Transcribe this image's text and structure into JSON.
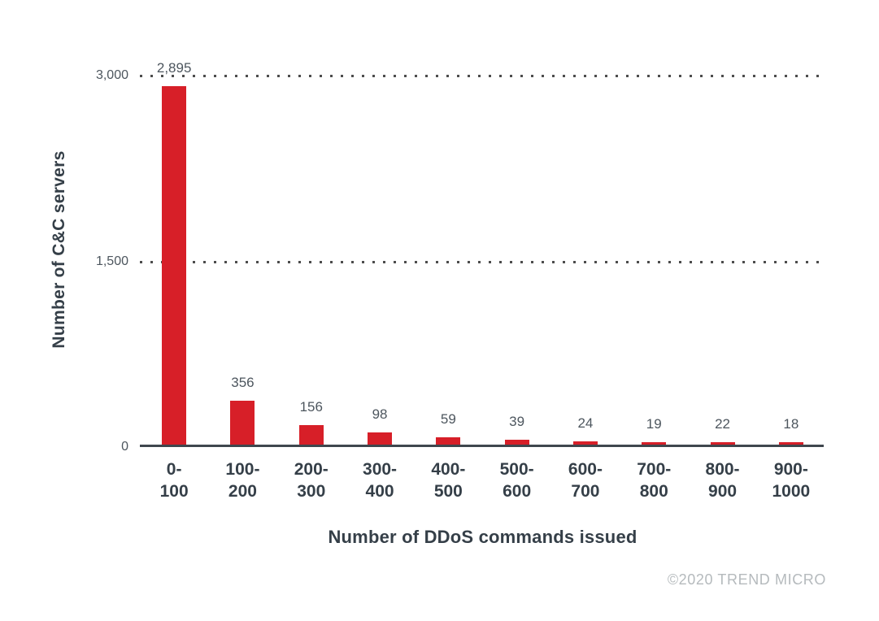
{
  "chart_data": {
    "type": "bar",
    "title": "",
    "xlabel": "Number of DDoS commands issued",
    "ylabel": "Number of C&C servers",
    "categories": [
      "0-100",
      "100-200",
      "200-300",
      "300-400",
      "400-500",
      "500-600",
      "600-700",
      "700-800",
      "800-900",
      "900-1000"
    ],
    "category_labels": [
      "0-\n100",
      "100-\n200",
      "200-\n300",
      "300-\n400",
      "400-\n500",
      "500-\n600",
      "600-\n700",
      "700-\n800",
      "800-\n900",
      "900-\n1000"
    ],
    "values": [
      2895,
      356,
      156,
      98,
      59,
      39,
      24,
      19,
      22,
      18
    ],
    "value_labels": [
      "2,895",
      "356",
      "156",
      "98",
      "59",
      "39",
      "24",
      "19",
      "22",
      "18"
    ],
    "ylim": [
      0,
      3000
    ],
    "yticks": [
      {
        "value": 0,
        "label": "0"
      },
      {
        "value": 1500,
        "label": "1,500"
      },
      {
        "value": 3000,
        "label": "3,000"
      }
    ],
    "grid": "horizontal dotted gridlines at 1,500 and 3,000 only; solid baseline at 0",
    "legend": "none",
    "bar_color": "#d71f28"
  },
  "colors": {
    "background": "#ffffff",
    "bar": "#d71f28",
    "axis_line": "#3f474e",
    "title_text": "#353f48",
    "tick_text": "#4d565e",
    "grid_dot": "#4c4c4c",
    "copyright_text": "#b5babd"
  },
  "footer": {
    "copyright": "©2020 TREND MICRO"
  }
}
